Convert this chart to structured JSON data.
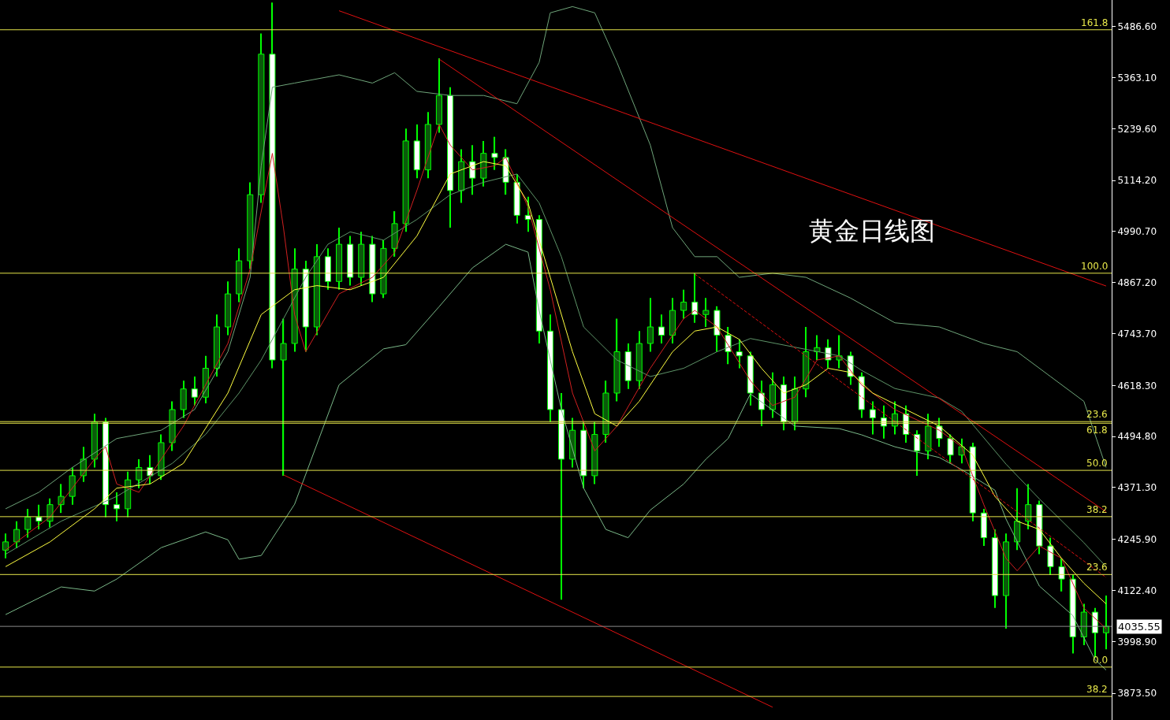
{
  "chart_data": {
    "type": "candlestick",
    "title": "黄金日线图",
    "categories": [
      null,
      null,
      null,
      null,
      null,
      null,
      null,
      null,
      null,
      null,
      null,
      null,
      null,
      null,
      null,
      null,
      null,
      null,
      null,
      null,
      null,
      null,
      null,
      null,
      null,
      null,
      null,
      null,
      null,
      null,
      null,
      null,
      null,
      null,
      null,
      null,
      null,
      null,
      null,
      null,
      null,
      null,
      null,
      null,
      null,
      null,
      null,
      null,
      null,
      null,
      null,
      null,
      null,
      null,
      null,
      null,
      null,
      null,
      null,
      null,
      null,
      null,
      null,
      null,
      null,
      null,
      null,
      null,
      null,
      null,
      null,
      null,
      null,
      null,
      null,
      null,
      null,
      null,
      null,
      null,
      null,
      null,
      null,
      null,
      null,
      null,
      null,
      null,
      null,
      null,
      null,
      null,
      null,
      null,
      null,
      null,
      null,
      null,
      null,
      null
    ],
    "ohlc": [
      [
        4220,
        4260,
        4200,
        4240
      ],
      [
        4240,
        4290,
        4225,
        4270
      ],
      [
        4270,
        4320,
        4250,
        4300
      ],
      [
        4300,
        4330,
        4270,
        4290
      ],
      [
        4290,
        4345,
        4275,
        4330
      ],
      [
        4330,
        4380,
        4310,
        4350
      ],
      [
        4350,
        4420,
        4330,
        4400
      ],
      [
        4400,
        4470,
        4385,
        4440
      ],
      [
        4440,
        4550,
        4420,
        4530
      ],
      [
        4530,
        4540,
        4300,
        4330
      ],
      [
        4330,
        4360,
        4290,
        4320
      ],
      [
        4320,
        4410,
        4300,
        4390
      ],
      [
        4390,
        4440,
        4370,
        4420
      ],
      [
        4420,
        4450,
        4380,
        4400
      ],
      [
        4400,
        4500,
        4390,
        4480
      ],
      [
        4480,
        4580,
        4460,
        4560
      ],
      [
        4560,
        4630,
        4540,
        4610
      ],
      [
        4610,
        4640,
        4570,
        4590
      ],
      [
        4590,
        4690,
        4575,
        4660
      ],
      [
        4660,
        4790,
        4640,
        4760
      ],
      [
        4760,
        4870,
        4740,
        4840
      ],
      [
        4840,
        4950,
        4820,
        4920
      ],
      [
        4920,
        5110,
        4900,
        5080
      ],
      [
        5080,
        5470,
        5060,
        5420
      ],
      [
        5420,
        5545,
        4660,
        4680
      ],
      [
        4680,
        4780,
        4400,
        4720
      ],
      [
        4720,
        4950,
        4700,
        4900
      ],
      [
        4900,
        4920,
        4700,
        4760
      ],
      [
        4760,
        4960,
        4740,
        4930
      ],
      [
        4930,
        4950,
        4850,
        4870
      ],
      [
        4870,
        5000,
        4850,
        4960
      ],
      [
        4960,
        4980,
        4860,
        4880
      ],
      [
        4880,
        4990,
        4860,
        4960
      ],
      [
        4960,
        4980,
        4820,
        4840
      ],
      [
        4840,
        4970,
        4830,
        4950
      ],
      [
        4950,
        5040,
        4930,
        5010
      ],
      [
        5010,
        5240,
        4990,
        5210
      ],
      [
        5210,
        5250,
        5120,
        5140
      ],
      [
        5140,
        5280,
        5120,
        5250
      ],
      [
        5250,
        5410,
        5230,
        5320
      ],
      [
        5320,
        5340,
        5000,
        5090
      ],
      [
        5090,
        5190,
        5060,
        5160
      ],
      [
        5160,
        5200,
        5080,
        5120
      ],
      [
        5120,
        5210,
        5100,
        5180
      ],
      [
        5180,
        5220,
        5140,
        5170
      ],
      [
        5170,
        5190,
        5080,
        5110
      ],
      [
        5110,
        5130,
        5010,
        5030
      ],
      [
        5030,
        5075,
        4990,
        5020
      ],
      [
        5020,
        5030,
        4720,
        4750
      ],
      [
        4750,
        4790,
        4530,
        4560
      ],
      [
        4560,
        4600,
        4100,
        4440
      ],
      [
        4440,
        4540,
        4420,
        4510
      ],
      [
        4510,
        4530,
        4370,
        4400
      ],
      [
        4400,
        4530,
        4380,
        4500
      ],
      [
        4500,
        4630,
        4480,
        4600
      ],
      [
        4600,
        4780,
        4580,
        4700
      ],
      [
        4700,
        4720,
        4610,
        4630
      ],
      [
        4630,
        4750,
        4610,
        4720
      ],
      [
        4720,
        4830,
        4700,
        4760
      ],
      [
        4760,
        4790,
        4720,
        4740
      ],
      [
        4740,
        4830,
        4720,
        4800
      ],
      [
        4800,
        4850,
        4780,
        4820
      ],
      [
        4820,
        4890,
        4770,
        4790
      ],
      [
        4790,
        4830,
        4760,
        4800
      ],
      [
        4800,
        4810,
        4700,
        4740
      ],
      [
        4740,
        4760,
        4670,
        4700
      ],
      [
        4700,
        4730,
        4660,
        4690
      ],
      [
        4690,
        4700,
        4570,
        4600
      ],
      [
        4600,
        4630,
        4520,
        4560
      ],
      [
        4560,
        4650,
        4540,
        4620
      ],
      [
        4620,
        4640,
        4510,
        4530
      ],
      [
        4530,
        4640,
        4510,
        4610
      ],
      [
        4610,
        4760,
        4590,
        4700
      ],
      [
        4700,
        4740,
        4680,
        4710
      ],
      [
        4710,
        4730,
        4660,
        4680
      ],
      [
        4680,
        4740,
        4660,
        4690
      ],
      [
        4690,
        4700,
        4620,
        4640
      ],
      [
        4640,
        4650,
        4540,
        4560
      ],
      [
        4560,
        4580,
        4500,
        4540
      ],
      [
        4540,
        4570,
        4490,
        4520
      ],
      [
        4520,
        4580,
        4500,
        4550
      ],
      [
        4550,
        4570,
        4480,
        4500
      ],
      [
        4500,
        4510,
        4400,
        4460
      ],
      [
        4460,
        4550,
        4440,
        4520
      ],
      [
        4520,
        4540,
        4470,
        4490
      ],
      [
        4490,
        4500,
        4430,
        4450
      ],
      [
        4450,
        4490,
        4430,
        4470
      ],
      [
        4470,
        4480,
        4290,
        4310
      ],
      [
        4310,
        4320,
        4230,
        4250
      ],
      [
        4250,
        4270,
        4080,
        4110
      ],
      [
        4110,
        4260,
        4030,
        4240
      ],
      [
        4240,
        4370,
        4220,
        4290
      ],
      [
        4290,
        4380,
        4270,
        4330
      ],
      [
        4330,
        4340,
        4210,
        4230
      ],
      [
        4230,
        4250,
        4160,
        4180
      ],
      [
        4180,
        4200,
        4120,
        4150
      ],
      [
        4150,
        4160,
        3970,
        4010
      ],
      [
        4010,
        4090,
        3990,
        4070
      ],
      [
        4070,
        4080,
        3960,
        4020
      ],
      [
        4020,
        4110,
        3980,
        4035.55
      ]
    ],
    "color": "#00ff00",
    "series": [
      {
        "type": "line",
        "color": "#6fa57a",
        "values": [
          4320,
          null,
          null,
          4360,
          null,
          null,
          4420,
          null,
          null,
          null,
          4490,
          null,
          null,
          null,
          4510,
          null,
          null,
          4560,
          null,
          null,
          4700,
          null,
          4880,
          5150,
          5340,
          null,
          5350,
          null,
          null,
          null,
          5370,
          null,
          null,
          5350,
          null,
          5375,
          null,
          5330,
          null,
          null,
          5320,
          null,
          null,
          5320,
          null,
          null,
          5300,
          null,
          5400,
          5520,
          null,
          5535,
          null,
          5520,
          null,
          5400,
          null,
          null,
          5200,
          null,
          5000,
          null,
          4930,
          null,
          4930,
          null,
          4880,
          null,
          null,
          4890,
          null,
          null,
          4880,
          null,
          null,
          null,
          4830,
          null,
          null,
          null,
          4770,
          null,
          null,
          null,
          4760,
          null,
          null,
          null,
          4720,
          null,
          null,
          4700,
          null,
          null,
          4640,
          null,
          null,
          4580,
          null,
          4420
        ]
      },
      {
        "type": "line",
        "color": "#5e9468",
        "values": [
          4210,
          null,
          null,
          null,
          null,
          4290,
          null,
          null,
          null,
          null,
          4350,
          null,
          null,
          null,
          null,
          4430,
          null,
          null,
          4500,
          null,
          null,
          4600,
          null,
          4680,
          null,
          4780,
          null,
          4880,
          null,
          4960,
          null,
          4990,
          null,
          null,
          4970,
          null,
          null,
          5020,
          null,
          null,
          5080,
          null,
          null,
          5110,
          null,
          null,
          5130,
          null,
          5060,
          null,
          4930,
          null,
          4760,
          null,
          null,
          4680,
          null,
          null,
          4640,
          null,
          null,
          4660,
          null,
          null,
          4700,
          null,
          null,
          4732,
          null,
          null,
          null,
          4711,
          null,
          null,
          null,
          4690,
          null,
          4655,
          null,
          null,
          4611,
          null,
          null,
          null,
          4588,
          null,
          4556,
          null,
          null,
          null,
          4428,
          null,
          null,
          4344,
          null,
          null,
          null,
          4238,
          null,
          4180
        ]
      },
      {
        "type": "line",
        "color": "#7ab888",
        "values": [
          4064,
          null,
          null,
          null,
          null,
          4131,
          null,
          null,
          4121,
          null,
          4150,
          null,
          null,
          null,
          4226,
          null,
          null,
          null,
          4264,
          null,
          4245,
          4198,
          null,
          4207,
          null,
          null,
          4331,
          null,
          null,
          null,
          4620,
          null,
          null,
          null,
          4707,
          null,
          4717,
          null,
          null,
          4809,
          null,
          null,
          4903,
          null,
          null,
          4960,
          null,
          4941,
          4800,
          null,
          4560,
          null,
          4370,
          null,
          4270,
          null,
          4250,
          null,
          4317,
          null,
          null,
          4380,
          null,
          4440,
          null,
          4490,
          null,
          4598,
          null,
          null,
          null,
          4520,
          null,
          null,
          null,
          4514,
          null,
          4499,
          null,
          null,
          4470,
          null,
          null,
          null,
          4444,
          null,
          4415,
          null,
          null,
          4365,
          4295,
          null,
          null,
          4133,
          null,
          null,
          4062,
          null,
          3955,
          3930
        ]
      },
      {
        "type": "line",
        "color": "#d02020",
        "values": [
          4220,
          null,
          null,
          null,
          4300,
          null,
          null,
          null,
          4440,
          4470,
          4380,
          null,
          4360,
          null,
          null,
          null,
          4520,
          null,
          null,
          null,
          4720,
          null,
          4900,
          null,
          5180,
          5000,
          4790,
          4700,
          null,
          null,
          4840,
          null,
          null,
          4880,
          null,
          4940,
          null,
          5090,
          null,
          5250,
          5200,
          null,
          5140,
          null,
          5150,
          5170,
          null,
          5050,
          null,
          4850,
          null,
          4600,
          null,
          4460,
          null,
          4520,
          null,
          null,
          4660,
          null,
          null,
          4780,
          4800,
          null,
          4760,
          null,
          null,
          4630,
          null,
          4570,
          null,
          4590,
          null,
          4680,
          null,
          4690,
          null,
          4620,
          null,
          null,
          4560,
          null,
          null,
          null,
          4510,
          null,
          4470,
          null,
          4330,
          null,
          4200,
          4170,
          null,
          4230,
          null,
          4200,
          null,
          4080,
          null,
          4030
        ]
      },
      {
        "type": "line",
        "color": "#ffff40",
        "values": [
          4180,
          null,
          null,
          null,
          4240,
          null,
          null,
          null,
          4320,
          null,
          4370,
          null,
          null,
          4380,
          null,
          null,
          4430,
          null,
          null,
          null,
          4600,
          null,
          null,
          4790,
          null,
          null,
          4850,
          null,
          4860,
          null,
          null,
          4850,
          null,
          null,
          4880,
          null,
          null,
          4980,
          null,
          null,
          5130,
          null,
          null,
          5160,
          null,
          5150,
          null,
          5060,
          null,
          4880,
          null,
          4700,
          null,
          4550,
          null,
          4520,
          null,
          4580,
          null,
          null,
          4700,
          null,
          4750,
          null,
          4760,
          null,
          4730,
          null,
          4660,
          null,
          4600,
          null,
          4620,
          null,
          4660,
          null,
          4650,
          null,
          4600,
          null,
          null,
          4560,
          null,
          null,
          4520,
          null,
          null,
          4450,
          null,
          4350,
          null,
          4290,
          null,
          4270,
          null,
          4200,
          null,
          4140,
          null,
          4090
        ]
      },
      {
        "type": "line",
        "color": "#e01010",
        "values": [
          null,
          null,
          null,
          null,
          null,
          null,
          null,
          null,
          null,
          null,
          null,
          null,
          null,
          null,
          null,
          null,
          null,
          null,
          null,
          null,
          null,
          null,
          null,
          null,
          null,
          null,
          null,
          null,
          null,
          null,
          5525,
          null,
          null,
          null,
          null,
          null,
          null,
          null,
          null,
          null,
          null,
          null,
          null,
          null,
          null,
          null,
          null,
          null,
          null,
          null,
          null,
          null,
          null,
          null,
          null,
          null,
          null,
          null,
          null,
          null,
          null,
          null,
          null,
          null,
          null,
          null,
          null,
          null,
          null,
          null,
          null,
          null,
          null,
          null,
          null,
          null,
          null,
          null,
          null,
          null,
          null,
          null,
          null,
          null,
          null,
          null,
          null,
          null,
          null,
          null,
          null,
          null,
          null,
          null,
          null,
          null,
          null,
          null,
          null,
          4859
        ]
      },
      {
        "type": "line",
        "color": "#e01010",
        "values": [
          null,
          null,
          null,
          null,
          null,
          null,
          null,
          null,
          null,
          null,
          null,
          null,
          null,
          null,
          null,
          null,
          null,
          null,
          null,
          null,
          null,
          null,
          null,
          null,
          null,
          null,
          null,
          null,
          null,
          null,
          null,
          null,
          null,
          null,
          null,
          null,
          null,
          null,
          null,
          5408,
          null,
          null,
          null,
          null,
          null,
          null,
          null,
          null,
          null,
          null,
          null,
          null,
          null,
          null,
          null,
          null,
          null,
          null,
          null,
          null,
          null,
          null,
          null,
          null,
          null,
          null,
          null,
          null,
          null,
          null,
          null,
          null,
          null,
          null,
          null,
          null,
          null,
          null,
          null,
          null,
          null,
          null,
          null,
          null,
          null,
          null,
          null,
          null,
          null,
          null,
          null,
          null,
          null,
          null,
          null,
          null,
          null,
          null,
          null,
          4313
        ]
      },
      {
        "type": "line",
        "color": "#e01010",
        "values": [
          null,
          null,
          null,
          null,
          null,
          null,
          null,
          null,
          null,
          null,
          null,
          null,
          null,
          null,
          null,
          null,
          null,
          null,
          null,
          null,
          null,
          null,
          null,
          null,
          null,
          4402,
          null,
          null,
          null,
          null,
          null,
          null,
          null,
          null,
          null,
          null,
          null,
          null,
          null,
          null,
          null,
          null,
          null,
          null,
          null,
          null,
          null,
          null,
          null,
          null,
          null,
          null,
          null,
          null,
          null,
          null,
          null,
          null,
          null,
          null,
          null,
          null,
          null,
          null,
          null,
          null,
          null,
          null,
          null,
          3840,
          null,
          null,
          null,
          null,
          null,
          null,
          null,
          null,
          null,
          null,
          null,
          null,
          null,
          null,
          null,
          null,
          null,
          null,
          null,
          null,
          null,
          null,
          null,
          null,
          null,
          null,
          null,
          null,
          null,
          null
        ]
      },
      {
        "type": "line",
        "color": "#e01010",
        "line_style": "dashed",
        "values": [
          null,
          null,
          null,
          null,
          null,
          null,
          null,
          null,
          null,
          null,
          null,
          null,
          null,
          null,
          null,
          null,
          null,
          null,
          null,
          null,
          null,
          null,
          null,
          null,
          null,
          null,
          null,
          null,
          null,
          null,
          null,
          null,
          null,
          null,
          null,
          null,
          null,
          null,
          null,
          null,
          null,
          null,
          null,
          null,
          null,
          null,
          null,
          null,
          null,
          null,
          null,
          null,
          null,
          null,
          null,
          null,
          null,
          null,
          null,
          null,
          null,
          null,
          4888,
          null,
          null,
          null,
          null,
          null,
          null,
          null,
          null,
          null,
          null,
          null,
          null,
          null,
          null,
          null,
          null,
          null,
          null,
          null,
          null,
          null,
          null,
          null,
          null,
          null,
          null,
          null,
          null,
          null,
          null,
          null,
          null,
          null,
          null,
          null,
          null,
          4154
        ]
      }
    ],
    "ref_lines": [
      {
        "axis": "y",
        "value": 5479,
        "color": "#e6e64a"
      },
      {
        "axis": "y",
        "value": 4890,
        "color": "#e6e64a"
      },
      {
        "axis": "y",
        "value": 4531,
        "color": "#e6e64a"
      },
      {
        "axis": "y",
        "value": 4527,
        "color": "#e6e64a"
      },
      {
        "axis": "y",
        "value": 4413,
        "color": "#e6e64a"
      },
      {
        "axis": "y",
        "value": 4301,
        "color": "#e6e64a"
      },
      {
        "axis": "y",
        "value": 4161,
        "color": "#e6e64a"
      },
      {
        "axis": "y",
        "value": 4035.55,
        "label": "4035.55",
        "color": "#8a8a8a"
      },
      {
        "axis": "y",
        "value": 3937,
        "color": "#e6e64a"
      },
      {
        "axis": "y",
        "value": 3866,
        "color": "#e6e64a"
      }
    ],
    "annotations": [
      {
        "text": "161.8",
        "y": 5479
      },
      {
        "text": "100.0",
        "y": 4890
      },
      {
        "text": "23.6",
        "y": 4531
      },
      {
        "text": "61.8",
        "y": 4527
      },
      {
        "text": "50.0",
        "y": 4413
      },
      {
        "text": "38.2",
        "y": 4301
      },
      {
        "text": "23.6",
        "y": 4161
      },
      {
        "text": "0.0",
        "y": 3937
      },
      {
        "text": "38.2",
        "y": 3866
      }
    ],
    "ylim": [
      3809,
      5551
    ],
    "yticks": [
      {
        "value": 5486.6,
        "label": "5486.60"
      },
      {
        "value": 5363.1,
        "label": "5363.10"
      },
      {
        "value": 5239.6,
        "label": "5239.60"
      },
      {
        "value": 5114.2,
        "label": "5114.20"
      },
      {
        "value": 4990.7,
        "label": "4990.70"
      },
      {
        "value": 4867.2,
        "label": "4867.20"
      },
      {
        "value": 4743.7,
        "label": "4743.70"
      },
      {
        "value": 4618.3,
        "label": "4618.30"
      },
      {
        "value": 4494.8,
        "label": "4494.80"
      },
      {
        "value": 4371.3,
        "label": "4371.30"
      },
      {
        "value": 4245.9,
        "label": "4245.90"
      },
      {
        "value": 4122.4,
        "label": "4122.40"
      },
      {
        "value": 3998.9,
        "label": "3998.90"
      },
      {
        "value": 3873.5,
        "label": "3873.50"
      }
    ],
    "tick_labels": "y",
    "grid": false
  }
}
